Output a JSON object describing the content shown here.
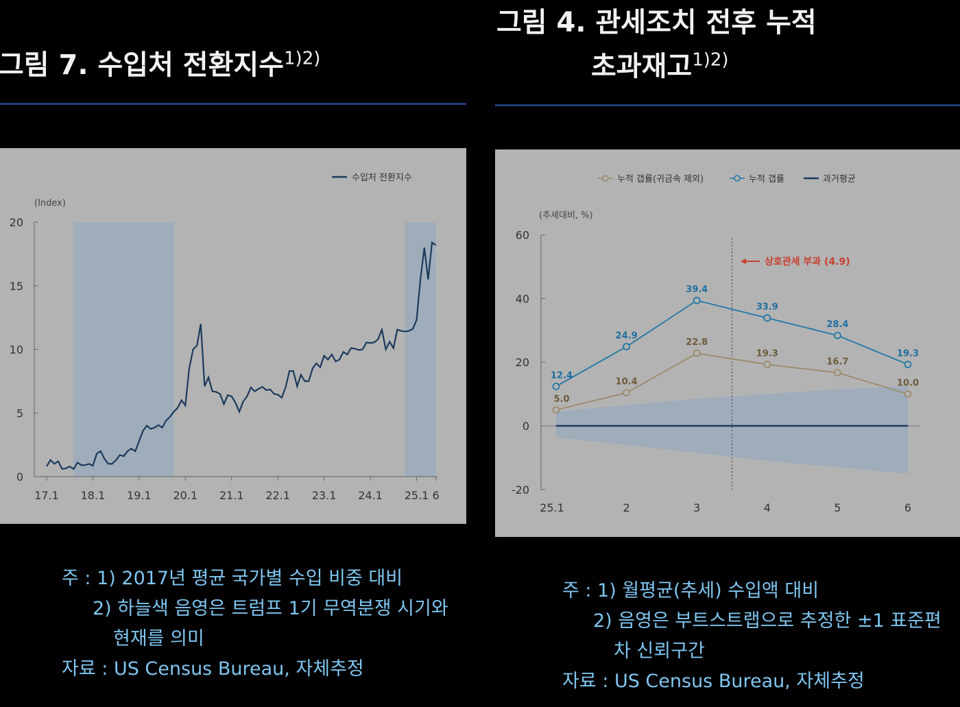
{
  "left": {
    "title": "그림 7. 수입처 전환지수",
    "title_sup": "1)2)",
    "notes": [
      "주 : 1) 2017년 평균 국가별 수입 비중 대비",
      "2) 하늘색 음영은 트럼프 1기 무역분쟁 시기와",
      "현재를 의미",
      "자료 : US Census Bureau, 자체추정"
    ]
  },
  "right": {
    "title_line1": "그림 4. 관세조치 전후 누적",
    "title_line2": "초과재고",
    "title_sup": "1)2)",
    "notes": [
      "주 : 1) 월평균(추세) 수입액 대비",
      "2) 음영은 부트스트랩으로 추정한 ±1 표준편",
      "차 신뢰구간",
      "자료 : US Census Bureau, 자체추정"
    ]
  },
  "chart_data": [
    {
      "type": "line",
      "ylabel": "(Index)",
      "ylim": [
        0,
        20
      ],
      "yticks": [
        "0",
        "5",
        "10",
        "15",
        "20"
      ],
      "xticks": [
        "17.1",
        "18.1",
        "19.1",
        "20.1",
        "21.1",
        "22.1",
        "23.1",
        "24.1",
        "25.1",
        "6"
      ],
      "x_start": "2017.1",
      "x_end": "2025.6",
      "legend": "top-right",
      "series": [
        {
          "name": "수입처 전환지수",
          "color": "#1b3a5c",
          "values": [
            0.8,
            1.3,
            1.0,
            1.2,
            0.6,
            0.65,
            0.8,
            0.6,
            1.1,
            0.9,
            0.9,
            1.0,
            0.85,
            1.8,
            2.0,
            1.4,
            1.0,
            1.0,
            1.3,
            1.7,
            1.6,
            2.0,
            2.2,
            2.0,
            2.8,
            3.6,
            4.0,
            3.75,
            3.85,
            4.05,
            3.85,
            4.4,
            4.7,
            5.1,
            5.4,
            6.0,
            5.6,
            8.5,
            10.0,
            10.3,
            12.0,
            7.1,
            7.8,
            6.7,
            6.65,
            6.5,
            5.7,
            6.4,
            6.3,
            5.8,
            5.1,
            5.9,
            6.3,
            7.0,
            6.7,
            6.9,
            7.05,
            6.8,
            6.85,
            6.5,
            6.45,
            6.2,
            7.0,
            8.3,
            8.3,
            7.1,
            8.0,
            7.5,
            7.5,
            8.5,
            8.9,
            8.6,
            9.5,
            9.2,
            9.6,
            9.05,
            9.2,
            9.8,
            9.6,
            10.1,
            10.05,
            9.95,
            10.0,
            10.55,
            10.5,
            10.55,
            10.8,
            11.55,
            10.0,
            10.6,
            10.1,
            11.55,
            11.45,
            11.4,
            11.45,
            11.6,
            12.3,
            15.5,
            18.0,
            15.5,
            18.4,
            18.2
          ]
        }
      ],
      "shaded_periods": [
        [
          "2017.8",
          "2019.10"
        ],
        [
          "2024.10",
          "2025.6"
        ]
      ],
      "shade_color": "#9fadbb"
    },
    {
      "type": "line",
      "ylabel": "(추세대비, %)",
      "ylim": [
        -20,
        60
      ],
      "yticks": [
        "-20",
        "0",
        "20",
        "40",
        "60"
      ],
      "categories": [
        "25.1",
        "2",
        "3",
        "4",
        "5",
        "6"
      ],
      "legend": "top",
      "series": [
        {
          "name": "누적 갭률(귀금속 제외)",
          "color": "#9c8a6a",
          "values": [
            5.0,
            10.4,
            22.8,
            19.3,
            16.7,
            10.0
          ]
        },
        {
          "name": "누적 갭률",
          "color": "#1f78a8",
          "values": [
            12.4,
            24.9,
            39.4,
            33.9,
            28.4,
            19.3
          ]
        },
        {
          "name": "과거평균",
          "color": "#1b3a5c",
          "values": [
            0,
            0,
            0,
            0,
            0,
            0
          ]
        }
      ],
      "band": {
        "upper": [
          4.5,
          6.5,
          8.5,
          10,
          11.5,
          12.5
        ],
        "lower": [
          -3.7,
          -6,
          -8.5,
          -11,
          -13,
          -15
        ],
        "color": "#9fadbb"
      },
      "annotation": {
        "text": "상호관세 부과 (4.9)",
        "color": "#c8402f",
        "x": 3.5
      }
    }
  ]
}
